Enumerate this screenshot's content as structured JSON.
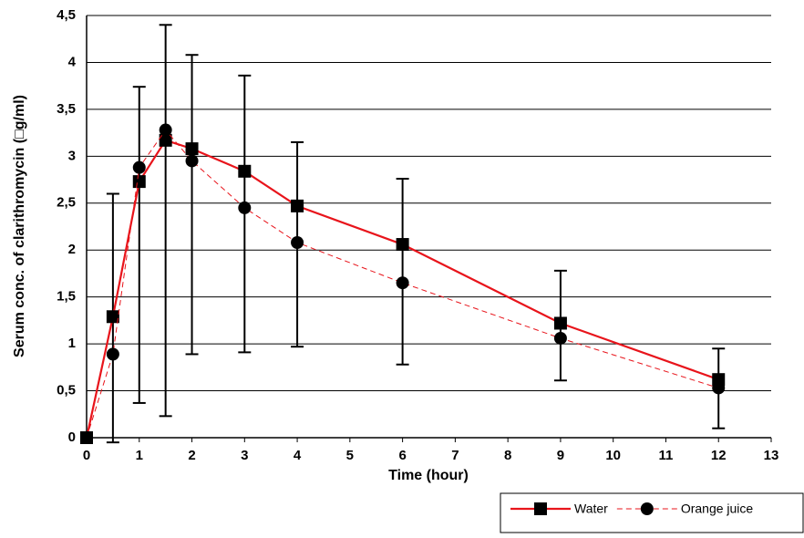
{
  "chart_data": {
    "type": "line",
    "x_label": "Time (hour)",
    "y_label": "Serum conc. of clarithromycin (□g/ml)",
    "xlim": [
      0,
      13
    ],
    "xticks": [
      0,
      1,
      2,
      3,
      4,
      5,
      6,
      7,
      8,
      9,
      10,
      11,
      12,
      13
    ],
    "ylim": [
      0,
      4.5
    ],
    "yticks": [
      0,
      {
        "value": 0.5,
        "label": "0,5"
      },
      1,
      {
        "value": 1.5,
        "label": "1,5"
      },
      2,
      {
        "value": 2.5,
        "label": "2,5"
      },
      3,
      {
        "value": 3.5,
        "label": "3,5"
      },
      4,
      {
        "value": 4.5,
        "label": "4,5"
      }
    ],
    "grid": true,
    "legend": "bottom-right",
    "x": [
      0,
      0.5,
      1,
      1.5,
      2,
      3,
      4,
      6,
      9,
      12
    ],
    "series": [
      {
        "name": "Water",
        "color": "#e8141b",
        "dash": false,
        "marker": "square",
        "values": [
          0,
          1.29,
          2.73,
          3.17,
          3.08,
          2.84,
          2.47,
          2.06,
          1.22,
          0.62
        ]
      },
      {
        "name": "Orange juice",
        "color": "#e8141b",
        "dash": true,
        "marker": "circle",
        "values": [
          0,
          0.89,
          2.88,
          3.28,
          2.95,
          2.45,
          2.08,
          1.65,
          1.06,
          0.53
        ]
      }
    ],
    "error_bars": {
      "x": [
        0.5,
        1,
        1.5,
        2,
        3,
        4,
        6,
        9,
        12
      ],
      "low": [
        -0.05,
        0.37,
        0.23,
        0.89,
        0.91,
        0.97,
        0.78,
        0.61,
        0.1
      ],
      "high": [
        2.6,
        3.74,
        4.4,
        4.08,
        3.86,
        3.15,
        2.76,
        1.78,
        0.95
      ]
    }
  }
}
